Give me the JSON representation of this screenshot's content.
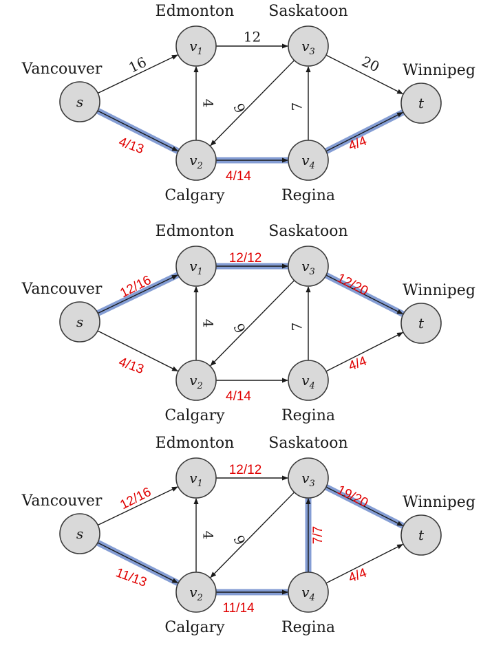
{
  "city_names": {
    "s": "Vancouver",
    "v1": "Edmonton",
    "v2": "Calgary",
    "v3": "Saskatoon",
    "v4": "Regina",
    "t": "Winnipeg"
  },
  "node_names": {
    "s": {
      "main": "s",
      "sub": ""
    },
    "v1": {
      "main": "v",
      "sub": "1"
    },
    "v2": {
      "main": "v",
      "sub": "2"
    },
    "v3": {
      "main": "v",
      "sub": "3"
    },
    "v4": {
      "main": "v",
      "sub": "4"
    },
    "t": {
      "main": "t",
      "sub": ""
    }
  },
  "colors": {
    "highlight": "#6f8ccc",
    "flow_text": "#e00000",
    "node_fill": "#d9d9d9"
  },
  "networks": [
    {
      "edges": [
        {
          "from": "s",
          "to": "v1",
          "capacity": "16",
          "flow": "",
          "highlighted": false
        },
        {
          "from": "s",
          "to": "v2",
          "capacity": "",
          "flow": "4/13",
          "highlighted": true
        },
        {
          "from": "v1",
          "to": "v3",
          "capacity": "12",
          "flow": "",
          "highlighted": false
        },
        {
          "from": "v2",
          "to": "v1",
          "capacity": "4",
          "flow": "",
          "highlighted": false
        },
        {
          "from": "v3",
          "to": "v2",
          "capacity": "9",
          "flow": "",
          "highlighted": false
        },
        {
          "from": "v2",
          "to": "v4",
          "capacity": "",
          "flow": "4/14",
          "highlighted": true
        },
        {
          "from": "v4",
          "to": "v3",
          "capacity": "7",
          "flow": "",
          "highlighted": false
        },
        {
          "from": "v3",
          "to": "t",
          "capacity": "20",
          "flow": "",
          "highlighted": false
        },
        {
          "from": "v4",
          "to": "t",
          "capacity": "",
          "flow": "4/4",
          "highlighted": true
        }
      ]
    },
    {
      "edges": [
        {
          "from": "s",
          "to": "v1",
          "capacity": "",
          "flow": "12/16",
          "highlighted": true
        },
        {
          "from": "s",
          "to": "v2",
          "capacity": "",
          "flow": "4/13",
          "highlighted": false
        },
        {
          "from": "v1",
          "to": "v3",
          "capacity": "",
          "flow": "12/12",
          "highlighted": true
        },
        {
          "from": "v2",
          "to": "v1",
          "capacity": "4",
          "flow": "",
          "highlighted": false
        },
        {
          "from": "v3",
          "to": "v2",
          "capacity": "9",
          "flow": "",
          "highlighted": false
        },
        {
          "from": "v2",
          "to": "v4",
          "capacity": "",
          "flow": "4/14",
          "highlighted": false
        },
        {
          "from": "v4",
          "to": "v3",
          "capacity": "7",
          "flow": "",
          "highlighted": false
        },
        {
          "from": "v3",
          "to": "t",
          "capacity": "",
          "flow": "12/20",
          "highlighted": true
        },
        {
          "from": "v4",
          "to": "t",
          "capacity": "",
          "flow": "4/4",
          "highlighted": false
        }
      ]
    },
    {
      "edges": [
        {
          "from": "s",
          "to": "v1",
          "capacity": "",
          "flow": "12/16",
          "highlighted": false
        },
        {
          "from": "s",
          "to": "v2",
          "capacity": "",
          "flow": "11/13",
          "highlighted": true
        },
        {
          "from": "v1",
          "to": "v3",
          "capacity": "",
          "flow": "12/12",
          "highlighted": false
        },
        {
          "from": "v2",
          "to": "v1",
          "capacity": "4",
          "flow": "",
          "highlighted": false
        },
        {
          "from": "v3",
          "to": "v2",
          "capacity": "9",
          "flow": "",
          "highlighted": false
        },
        {
          "from": "v2",
          "to": "v4",
          "capacity": "",
          "flow": "11/14",
          "highlighted": true
        },
        {
          "from": "v4",
          "to": "v3",
          "capacity": "",
          "flow": "7/7",
          "highlighted": true
        },
        {
          "from": "v3",
          "to": "t",
          "capacity": "",
          "flow": "19/20",
          "highlighted": true
        },
        {
          "from": "v4",
          "to": "t",
          "capacity": "",
          "flow": "4/4",
          "highlighted": false
        }
      ]
    }
  ]
}
